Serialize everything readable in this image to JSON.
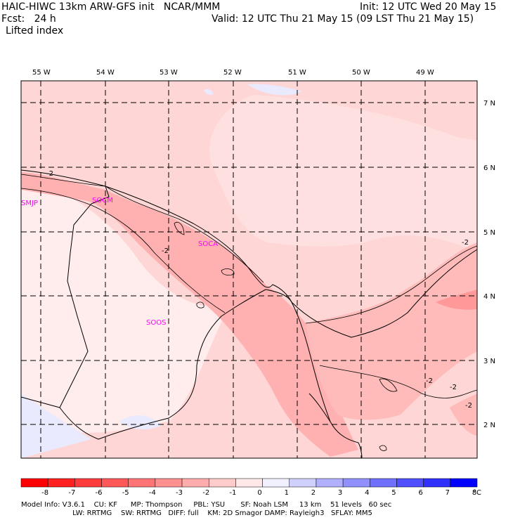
{
  "header": {
    "model_line": "HAIC-HIWC 13km ARW-GFS init   NCAR/MMM",
    "init_line": "Init: 12 UTC Wed 20 May 15",
    "fcst_line": "Fcst:   24 h",
    "valid_line": "Valid: 12 UTC Thu 21 May 15 (09 LST Thu 21 May 15)",
    "field_name": "Lifted index"
  },
  "map": {
    "lon_labels": [
      "55 W",
      "54 W",
      "53 W",
      "52 W",
      "51 W",
      "50 W",
      "49 W"
    ],
    "lat_labels": [
      "7 N",
      "6 N",
      "5 N",
      "4 N",
      "3 N",
      "2 N"
    ],
    "stations": [
      {
        "id": "SMJP",
        "color": "#ff00ff"
      },
      {
        "id": "SOCM",
        "color": "#ff00ff"
      },
      {
        "id": "SOCA",
        "color": "#ff00ff"
      },
      {
        "id": "SOOS",
        "color": "#ff00ff"
      }
    ],
    "contour_labels": [
      "-2",
      "-2",
      "-2",
      "-2",
      "-2",
      "-2"
    ]
  },
  "colorbar": {
    "tick_labels": [
      "-8",
      "-7",
      "-6",
      "-5",
      "-4",
      "-3",
      "-2",
      "-1",
      "0",
      "1",
      "2",
      "3",
      "4",
      "5",
      "6",
      "7",
      "8"
    ],
    "unit": "°C",
    "colors": [
      "#ff0000",
      "#ff2020",
      "#ff3c3c",
      "#ff5858",
      "#ff7474",
      "#ff9090",
      "#ffacac",
      "#ffcbcb",
      "#ffe8e8",
      "#f0f0ff",
      "#d0d0ff",
      "#b0b0ff",
      "#9090ff",
      "#7070ff",
      "#5050ff",
      "#3030ff",
      "#0000ff"
    ]
  },
  "footer": {
    "line1": "Model Info: V3.6.1    CU: KF      MP: Thompson     PBL: YSU       SF: Noah LSM     13 km    51 levels   60 sec",
    "line2": "                       LW: RRTMG    SW: RRTMG   DIFF: full    KM: 2D Smagor DAMP: Rayleigh3   SFLAY: MM5"
  }
}
